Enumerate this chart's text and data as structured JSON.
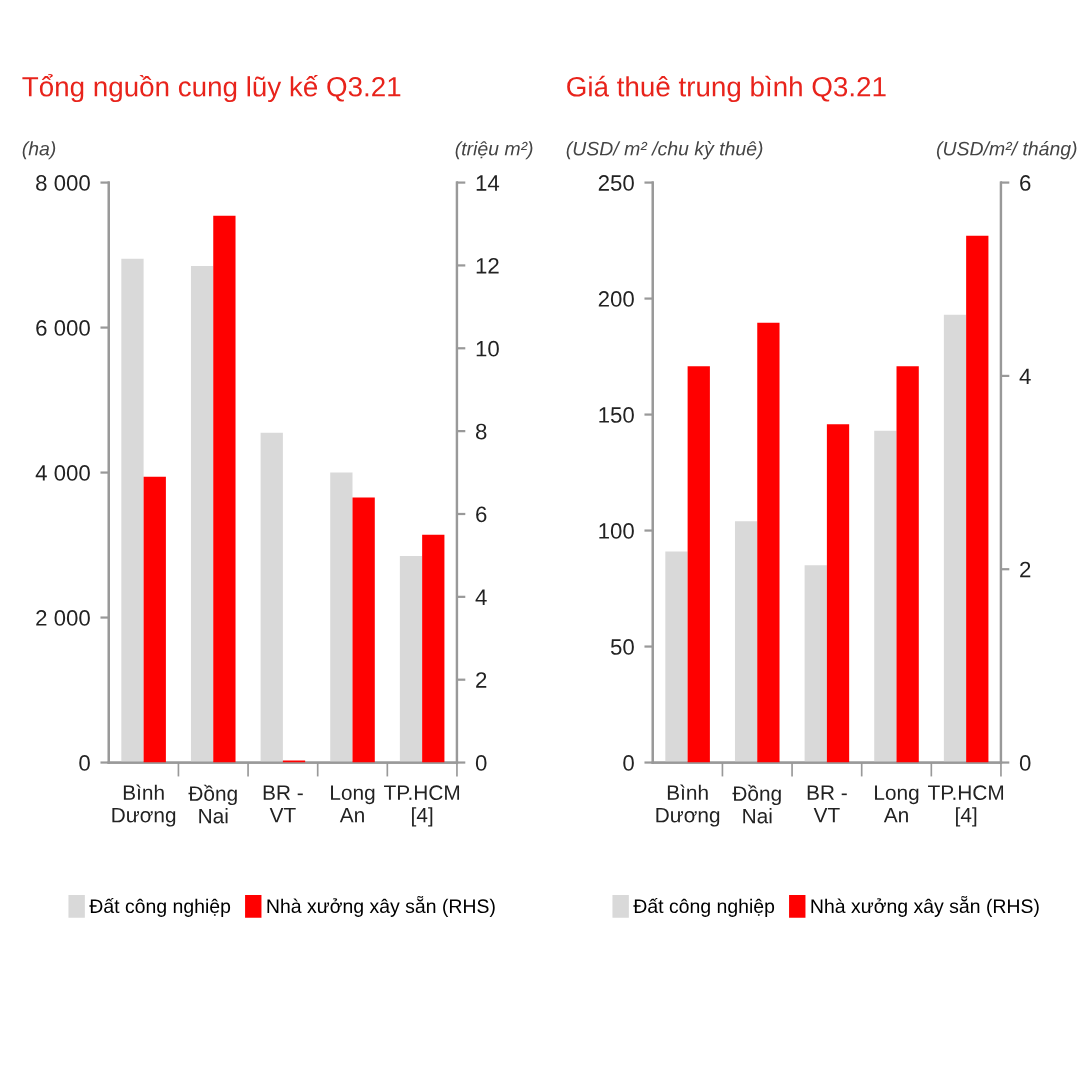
{
  "chart_data": [
    {
      "type": "bar",
      "title": "Tổng nguồn cung lũy kế Q3.21",
      "ylabel": "(ha)",
      "y2label": "(triệu m²)",
      "categories": [
        "Bình\nDương",
        "Đồng\nNai",
        "BR -\nVT",
        "Long\nAn",
        "TP.HCM\n[4]"
      ],
      "series": [
        {
          "name": "Đất công nghiệp",
          "color": "#d9d9d9",
          "values": [
            6950,
            6850,
            4550,
            4000,
            2850
          ]
        },
        {
          "name": "Nhà xưởng xây sẵn (RHS)",
          "color": "#ff0000",
          "axis": "y2",
          "values": [
            6.9,
            13.2,
            0.05,
            6.4,
            5.5
          ]
        }
      ],
      "ylim": [
        0,
        8000
      ],
      "yticks": [
        0,
        {
          "value": 2000,
          "label": "2 000"
        },
        {
          "value": 4000,
          "label": "4 000"
        },
        {
          "value": 6000,
          "label": "6 000"
        },
        {
          "value": 8000,
          "label": "8 000"
        }
      ],
      "y2lim": [
        0,
        14
      ],
      "y2ticks": [
        0,
        2,
        4,
        6,
        8,
        10,
        12,
        14
      ],
      "grid": false,
      "legend": "bottom"
    },
    {
      "type": "bar",
      "title": "Giá thuê trung bình Q3.21",
      "ylabel": "(USD/ m² /chu kỳ thuê)",
      "y2label": "(USD/m²/ tháng)",
      "categories": [
        "Bình\nDương",
        "Đồng\nNai",
        "BR -\nVT",
        "Long\nAn",
        "TP.HCM\n[4]"
      ],
      "series": [
        {
          "name": "Đất công nghiệp",
          "color": "#d9d9d9",
          "values": [
            91,
            104,
            85,
            143,
            193
          ]
        },
        {
          "name": "Nhà xưởng xây sẵn (RHS)",
          "color": "#ff0000",
          "axis": "y2",
          "values": [
            4.1,
            4.55,
            3.5,
            4.1,
            5.45
          ]
        }
      ],
      "ylim": [
        0,
        250
      ],
      "yticks": [
        0,
        50,
        100,
        150,
        200,
        250
      ],
      "y2lim": [
        0,
        6
      ],
      "y2ticks": [
        0,
        2,
        4,
        6
      ],
      "grid": false,
      "legend": "bottom"
    }
  ]
}
